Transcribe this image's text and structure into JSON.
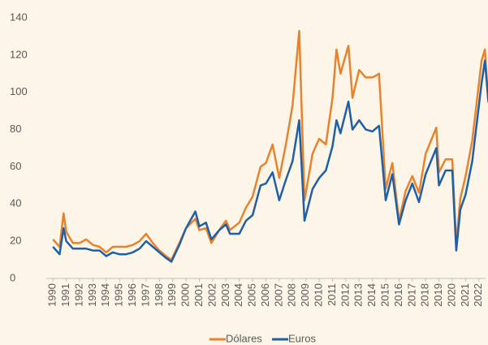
{
  "chart_data": {
    "type": "line",
    "x": [
      1990.0,
      1990.5,
      1990.8,
      1991.0,
      1991.5,
      1992.0,
      1992.5,
      1993.0,
      1993.5,
      1994.0,
      1994.5,
      1995.0,
      1995.5,
      1996.0,
      1996.5,
      1997.0,
      1997.5,
      1998.0,
      1998.5,
      1998.9,
      1999.5,
      2000.0,
      2000.7,
      2001.0,
      2001.5,
      2001.9,
      2002.5,
      2003.0,
      2003.3,
      2004.0,
      2004.5,
      2005.0,
      2005.6,
      2006.0,
      2006.5,
      2007.0,
      2007.5,
      2008.0,
      2008.5,
      2008.9,
      2009.5,
      2010.0,
      2010.5,
      2011.0,
      2011.3,
      2011.6,
      2012.2,
      2012.5,
      2013.0,
      2013.5,
      2014.0,
      2014.5,
      2015.0,
      2015.5,
      2016.0,
      2016.5,
      2017.0,
      2017.5,
      2018.0,
      2018.8,
      2019.0,
      2019.5,
      2020.0,
      2020.3,
      2020.6,
      2021.0,
      2021.5,
      2022.2,
      2022.45,
      2022.7,
      2022.9
    ],
    "series": [
      {
        "name": "Dólares",
        "color": "#e8822c",
        "values": [
          21,
          17,
          35,
          25,
          19,
          19,
          21,
          18,
          17,
          14,
          17,
          17,
          17,
          18,
          20,
          24,
          19,
          15,
          12,
          10,
          19,
          27,
          32,
          26,
          27,
          19,
          26,
          31,
          26,
          30,
          38,
          44,
          60,
          62,
          72,
          54,
          72,
          93,
          133,
          42,
          67,
          75,
          72,
          97,
          123,
          110,
          125,
          97,
          112,
          108,
          108,
          110,
          48,
          62,
          31,
          47,
          55,
          46,
          67,
          81,
          57,
          64,
          64,
          18,
          43,
          55,
          74,
          117,
          123,
          95,
          92
        ]
      },
      {
        "name": "Euros",
        "color": "#1f5fa8",
        "values": [
          17,
          13,
          27,
          20,
          16,
          16,
          16,
          15,
          15,
          12,
          14,
          13,
          13,
          14,
          16,
          20,
          17,
          14,
          11,
          9,
          18,
          27,
          36,
          28,
          30,
          21,
          26,
          29,
          24,
          24,
          31,
          34,
          50,
          51,
          57,
          42,
          53,
          63,
          85,
          31,
          48,
          54,
          58,
          71,
          85,
          78,
          95,
          80,
          85,
          80,
          79,
          82,
          42,
          56,
          29,
          42,
          51,
          41,
          56,
          70,
          50,
          58,
          58,
          15,
          37,
          45,
          63,
          105,
          117,
          96,
          91
        ]
      }
    ],
    "xlim": [
      1989.5,
      2022.5
    ],
    "xticks": [
      1990,
      1991,
      1992,
      1993,
      1994,
      1995,
      1996,
      1997,
      1998,
      1999,
      2000,
      2001,
      2002,
      2003,
      2004,
      2005,
      2006,
      2007,
      2008,
      2009,
      2010,
      2011,
      2012,
      2013,
      2014,
      2015,
      2016,
      2017,
      2018,
      2019,
      2020,
      2021,
      2022
    ],
    "ylim": [
      0,
      140
    ],
    "yticks": [
      0,
      20,
      40,
      60,
      80,
      100,
      120,
      140
    ],
    "grid": false,
    "legend": "bottom"
  }
}
